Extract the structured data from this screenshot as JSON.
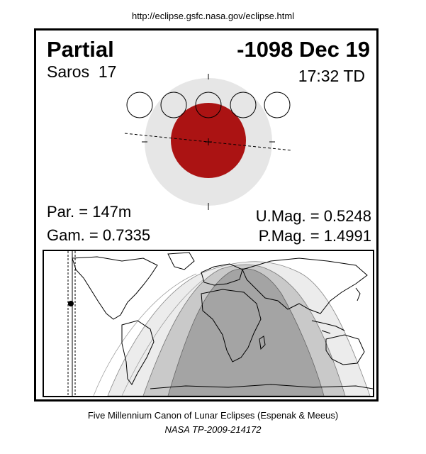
{
  "header": {
    "url": "http://eclipse.gsfc.nasa.gov/eclipse.html"
  },
  "eclipse": {
    "type": "Partial",
    "date": "-1098 Dec 19",
    "saros_label": "Saros",
    "saros_number": "17",
    "saros": "Saros  17",
    "time": "17:32 TD",
    "par": "Par. = 147m",
    "gam": "Gam. = 0.7335",
    "umag": "U.Mag. = 0.5248",
    "pmag": "P.Mag. = 1.4991"
  },
  "footer": {
    "credit": "Five Millennium Canon of Lunar Eclipses (Espenak & Meeus)",
    "tp": "NASA TP-2009-214172"
  },
  "colors": {
    "penumbra": "#e6e6e6",
    "umbra": "#ab1313",
    "map_light": "#ececec",
    "map_mid": "#c9c9c9",
    "map_dark": "#a4a4a4"
  }
}
